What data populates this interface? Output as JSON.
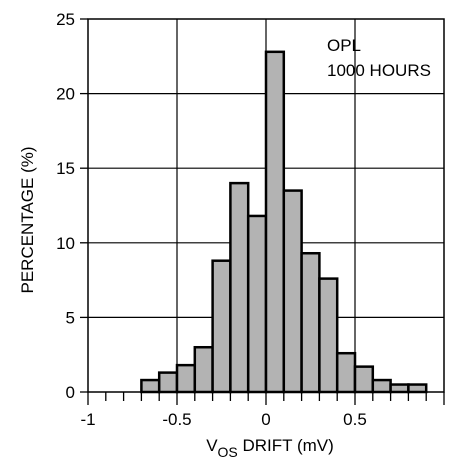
{
  "chart_data": {
    "type": "bar",
    "xlabel": {
      "prefix": "V",
      "subscript": "OS",
      "suffix": " DRIFT (mV)"
    },
    "ylabel": "PERCENTAGE (%)",
    "annotation_lines": [
      "OPL",
      "1000 HOURS"
    ],
    "xlim": [
      -1,
      1
    ],
    "ylim": [
      0,
      25
    ],
    "x_ticks": [
      -1,
      -0.5,
      0,
      0.5
    ],
    "x_tick_labels": [
      "-1",
      "-0.5",
      "0",
      "0.5"
    ],
    "x_minor_step": 0.1,
    "y_ticks": [
      0,
      5,
      10,
      15,
      20,
      25
    ],
    "y_tick_labels": [
      "0",
      "5",
      "10",
      "15",
      "20",
      "25"
    ],
    "grid": true,
    "bin_width": 0.1,
    "bins": [
      {
        "x": -0.7,
        "value": 0.8
      },
      {
        "x": -0.6,
        "value": 1.3
      },
      {
        "x": -0.5,
        "value": 1.8
      },
      {
        "x": -0.4,
        "value": 3.0
      },
      {
        "x": -0.3,
        "value": 8.8
      },
      {
        "x": -0.2,
        "value": 14.0
      },
      {
        "x": -0.1,
        "value": 11.8
      },
      {
        "x": 0.0,
        "value": 22.8
      },
      {
        "x": 0.1,
        "value": 13.5
      },
      {
        "x": 0.2,
        "value": 9.3
      },
      {
        "x": 0.3,
        "value": 7.6
      },
      {
        "x": 0.4,
        "value": 2.6
      },
      {
        "x": 0.5,
        "value": 1.7
      },
      {
        "x": 0.6,
        "value": 0.8
      },
      {
        "x": 0.7,
        "value": 0.5
      },
      {
        "x": 0.8,
        "value": 0.5
      }
    ]
  }
}
